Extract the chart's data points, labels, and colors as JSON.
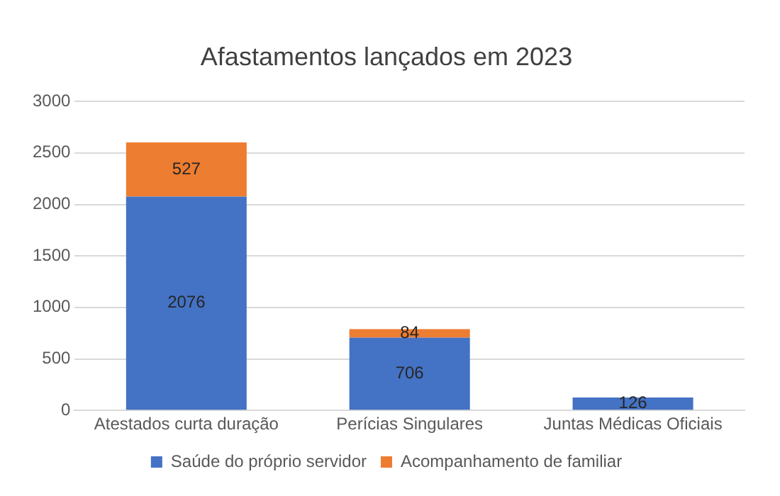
{
  "chart_data": {
    "type": "bar",
    "title": "Afastamentos lançados em 2023",
    "categories": [
      "Atestados curta duração",
      "Perícias Singulares",
      "Juntas Médicas Oficiais"
    ],
    "series": [
      {
        "name": "Saúde do próprio servidor",
        "color": "#4472c4",
        "values": [
          2076,
          706,
          126
        ]
      },
      {
        "name": "Acompanhamento de familiar",
        "color": "#ed7d31",
        "values": [
          527,
          84,
          null
        ]
      }
    ],
    "stacked": true,
    "ylim": [
      0,
      3000
    ],
    "yticks": [
      0,
      500,
      1000,
      1500,
      2000,
      2500,
      3000
    ],
    "grid": "y",
    "legend": "bottom",
    "data_labels": true
  }
}
